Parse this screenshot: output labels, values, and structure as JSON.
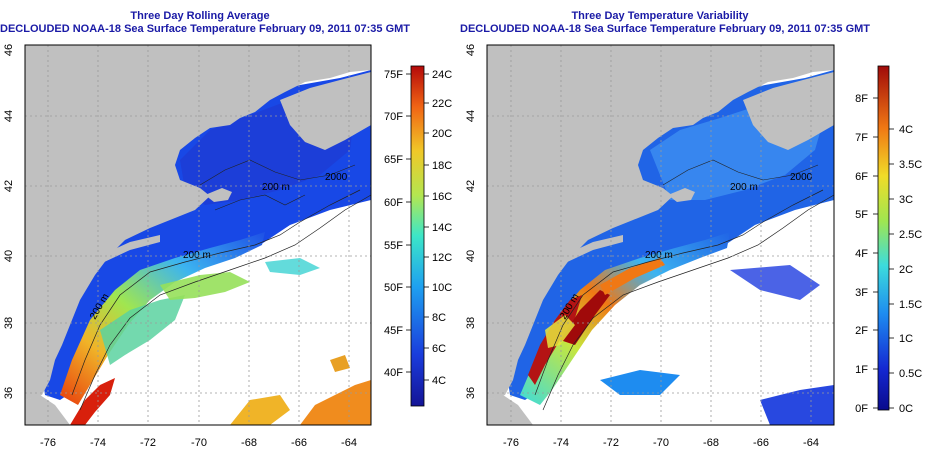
{
  "panels": [
    {
      "id": "average",
      "title_line1": "Three Day Rolling Average",
      "title_line2": "DECLOUDED NOAA-18 Sea Surface Temperature February 09, 2011 07:35 GMT",
      "colorbar_f": [
        "75F",
        "70F",
        "65F",
        "60F",
        "55F",
        "50F",
        "45F",
        "40F"
      ],
      "colorbar_c": [
        "24C",
        "22C",
        "20C",
        "18C",
        "16C",
        "14C",
        "12C",
        "10C",
        "8C",
        "6C",
        "4C"
      ]
    },
    {
      "id": "variability",
      "title_line1": "Three Day Temperature Variability",
      "title_line2": "DECLOUDED NOAA-18 Sea Surface Temperature February 09, 2011 07:35 GMT",
      "colorbar_f": [
        "8F",
        "7F",
        "6F",
        "5F",
        "4F",
        "3F",
        "2F",
        "1F",
        "0F"
      ],
      "colorbar_c": [
        "4C",
        "3.5C",
        "3C",
        "2.5C",
        "2C",
        "1.5C",
        "1C",
        "0.5C",
        "0C"
      ]
    }
  ],
  "x_ticks": [
    "-76",
    "-74",
    "-72",
    "-70",
    "-68",
    "-66",
    "-64"
  ],
  "y_ticks": [
    "46",
    "44",
    "42",
    "40",
    "38",
    "36"
  ],
  "contour_labels": [
    "200 m",
    "2000",
    "200 m",
    "200 m"
  ],
  "colors": {
    "title": "#1a1aa6",
    "land": "#c0c0c0",
    "no_data": "#ffffff",
    "cold_water": "#1440e0",
    "warm_water": "#e04010"
  }
}
